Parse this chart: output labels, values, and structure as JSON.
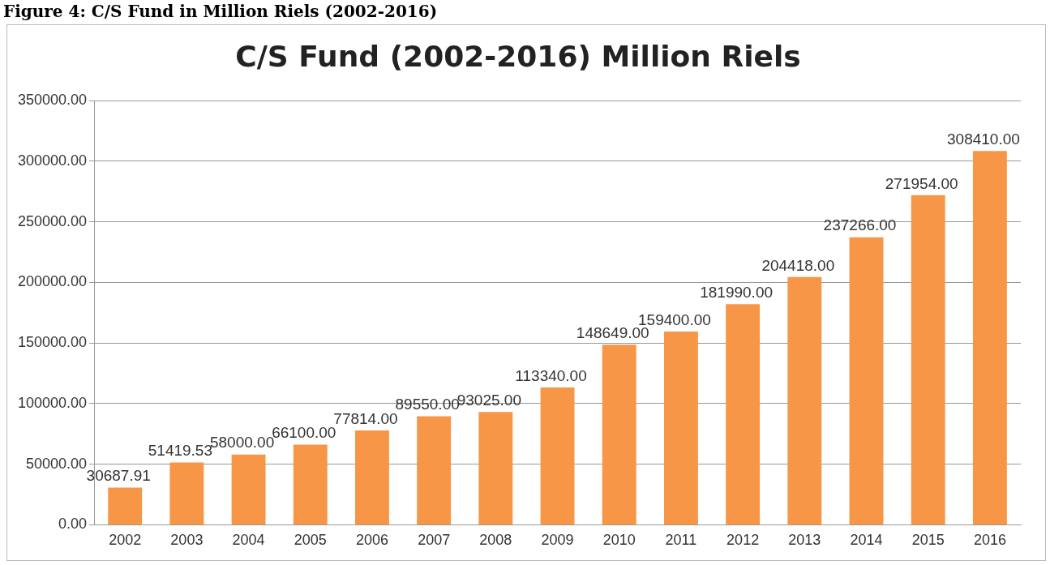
{
  "chart_data": {
    "type": "bar",
    "title": "C/S Fund (2002-2016) Million Riels",
    "annotations": [
      "Figure 4: C/S Fund in Million Riels (2002-2016)"
    ],
    "categories": [
      "2002",
      "2003",
      "2004",
      "2005",
      "2006",
      "2007",
      "2008",
      "2009",
      "2010",
      "2011",
      "2012",
      "2013",
      "2014",
      "2015",
      "2016"
    ],
    "values": [
      30687.91,
      51419.53,
      58000,
      66100,
      77814,
      89550,
      93025,
      113340,
      148649,
      159400,
      181990,
      204418,
      237266,
      271954,
      308410
    ],
    "value_labels": [
      "30687.91",
      "51419.53",
      "58000.00",
      "66100.00",
      "77814.00",
      "89550.00",
      "93025.00",
      "113340.00",
      "148649.00",
      "159400.00",
      "181990.00",
      "204418.00",
      "237266.00",
      "271954.00",
      "308410.00"
    ],
    "color": "#f79646",
    "ylim": [
      0,
      350000
    ],
    "yticks": [
      {
        "value": 0,
        "label": "0.00"
      },
      {
        "value": 50000,
        "label": "50000.00"
      },
      {
        "value": 100000,
        "label": "100000.00"
      },
      {
        "value": 150000,
        "label": "150000.00"
      },
      {
        "value": 200000,
        "label": "200000.00"
      },
      {
        "value": 250000,
        "label": "250000.00"
      },
      {
        "value": 300000,
        "label": "300000.00"
      },
      {
        "value": 350000,
        "label": "350000.00"
      }
    ],
    "grid": "y",
    "legend": false
  }
}
